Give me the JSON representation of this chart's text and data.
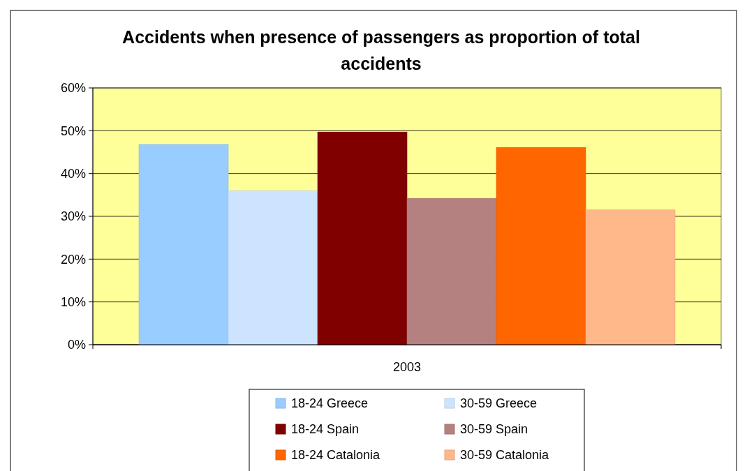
{
  "chart_data": {
    "type": "bar",
    "title": "Accidents when presence of passengers as proportion of total accidents",
    "categories": [
      "2003"
    ],
    "series": [
      {
        "name": "18-24 Greece",
        "color": "#99ccff",
        "values": [
          46.8
        ]
      },
      {
        "name": "30-59 Greece",
        "color": "#cce4ff",
        "values": [
          36.0
        ]
      },
      {
        "name": "18-24 Spain",
        "color": "#800000",
        "values": [
          49.7
        ]
      },
      {
        "name": "30-59 Spain",
        "color": "#b58080",
        "values": [
          34.2
        ]
      },
      {
        "name": "18-24 Catalonia",
        "color": "#ff6600",
        "values": [
          46.1
        ]
      },
      {
        "name": "30-59 Catalonia",
        "color": "#ffb88a",
        "values": [
          31.5
        ]
      }
    ],
    "ylim": [
      0,
      60
    ],
    "yticks": [
      {
        "value": 0,
        "label": "0%"
      },
      {
        "value": 10,
        "label": "10%"
      },
      {
        "value": 20,
        "label": "20%"
      },
      {
        "value": 30,
        "label": "30%"
      },
      {
        "value": 40,
        "label": "40%"
      },
      {
        "value": 50,
        "label": "50%"
      },
      {
        "value": 60,
        "label": "60%"
      }
    ],
    "grid": "y",
    "legend": "bottom"
  }
}
